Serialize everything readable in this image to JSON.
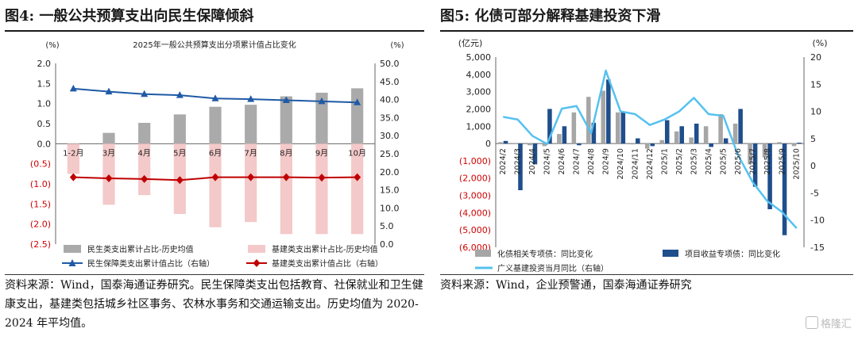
{
  "left": {
    "figure_title": "图4:  一般公共预算支出向民生保障倾斜",
    "source": "资料来源：Wind，国泰海通证券研究。民生保障类支出包括教育、社保就业和卫生健康支出，基建类包括城乡社区事务、农林水事务和交通运输支出。历史均值为 2020-2024 年平均值。"
  },
  "right": {
    "figure_title": "图5:  化债可部分解释基建投资下滑",
    "source": "资料来源：Wind，企业预警通，国泰海通证券研究"
  },
  "chart_data": [
    {
      "type": "bar",
      "title": "2025年一般公共预算支出分项累计值占比变化",
      "left_unit": "(%)",
      "right_unit": "(%)",
      "categories": [
        "1-2月",
        "3月",
        "4月",
        "5月",
        "6月",
        "7月",
        "8月",
        "9月",
        "10月"
      ],
      "left_axis": {
        "min": -2.5,
        "max": 2.0,
        "ticks": [
          "2.0",
          "1.5",
          "1.0",
          "0.5",
          "0.0",
          "(0.5)",
          "(1.0)",
          "(1.5)",
          "(2.0)",
          "(2.5)"
        ]
      },
      "right_axis": {
        "min": 0,
        "max": 50,
        "ticks": [
          "50.0",
          "45.0",
          "40.0",
          "35.0",
          "30.0",
          "25.0",
          "20.0",
          "15.0",
          "10.0",
          "5.0",
          "0.0"
        ]
      },
      "series": [
        {
          "name": "民生类支出累计占比-历史均值",
          "kind": "bar",
          "axis": "left",
          "color": "#aaaaaa",
          "values": [
            0.0,
            0.27,
            0.52,
            0.73,
            0.92,
            0.97,
            1.18,
            1.27,
            1.38
          ]
        },
        {
          "name": "基建类支出累计占比-历史均值",
          "kind": "bar",
          "axis": "left",
          "color": "#f4c9c9",
          "values": [
            -0.75,
            -1.52,
            -1.28,
            -1.75,
            -2.08,
            -1.95,
            -2.25,
            -2.25,
            -2.25
          ]
        },
        {
          "name": "民生保障类支出累计值占比（右轴）",
          "kind": "line",
          "axis": "right",
          "color": "#1f5aa6",
          "marker": "triangle",
          "values": [
            43.0,
            42.2,
            41.5,
            41.2,
            40.3,
            40.1,
            39.8,
            39.5,
            39.2
          ]
        },
        {
          "name": "基建类支出累计值占比（右轴）",
          "kind": "line",
          "axis": "right",
          "color": "#c00000",
          "marker": "diamond",
          "values": [
            18.5,
            18.2,
            18.0,
            17.7,
            18.5,
            18.5,
            18.5,
            18.4,
            18.5
          ]
        }
      ],
      "legend": "bottom"
    },
    {
      "type": "bar",
      "title": "",
      "left_unit": "(亿元)",
      "right_unit": "(%)",
      "categories": [
        "2024/2",
        "2024/3",
        "2024/4",
        "2024/5",
        "2024/6",
        "2024/7",
        "2024/8",
        "2024/9",
        "2024/10",
        "2024/11",
        "2024/12",
        "2025/1",
        "2025/2",
        "2025/3",
        "2025/4",
        "2025/5",
        "2025/6",
        "2025/7",
        "2025/8",
        "2025/9",
        "2025/10"
      ],
      "left_axis": {
        "min": -6000,
        "max": 5000,
        "ticks": [
          "5,000",
          "4,000",
          "3,000",
          "2,000",
          "1,000",
          "0",
          "(1,000)",
          "(2,000)",
          "(3,000)",
          "(4,000)",
          "(5,000)",
          "(6,000)"
        ]
      },
      "right_axis": {
        "min": -15,
        "max": 20,
        "ticks": [
          "20",
          "15",
          "10",
          "5",
          "0",
          "-5",
          "-10",
          "-15"
        ]
      },
      "series": [
        {
          "name": "化债相关专项债：同比变化",
          "kind": "bar",
          "axis": "left",
          "color": "#a6a6a6",
          "values": [
            80,
            20,
            -100,
            -150,
            550,
            1800,
            2700,
            3050,
            1800,
            -50,
            -300,
            200,
            700,
            350,
            1000,
            1700,
            1150,
            -1200,
            -800,
            80,
            -150
          ]
        },
        {
          "name": "项目收益专项债：同比变化",
          "kind": "bar",
          "axis": "left",
          "color": "#1f4e8c",
          "values": [
            150,
            -2700,
            -1200,
            2000,
            1000,
            -100,
            1200,
            3700,
            1800,
            300,
            -150,
            1350,
            1000,
            1150,
            -200,
            300,
            2000,
            -2500,
            -3800,
            -5300,
            50
          ]
        },
        {
          "name": "广义基建投资当月同比（右轴）",
          "kind": "line",
          "axis": "right",
          "color": "#55c1f0",
          "values": [
            9.0,
            8.5,
            5.5,
            4.0,
            10.5,
            11.0,
            6.0,
            17.5,
            10.0,
            9.5,
            7.5,
            8.5,
            10.0,
            12.5,
            9.5,
            9.2,
            2.0,
            -3.0,
            -6.5,
            -8.5,
            -11.5
          ]
        }
      ],
      "legend": "bottom"
    }
  ],
  "watermark": "格隆汇"
}
